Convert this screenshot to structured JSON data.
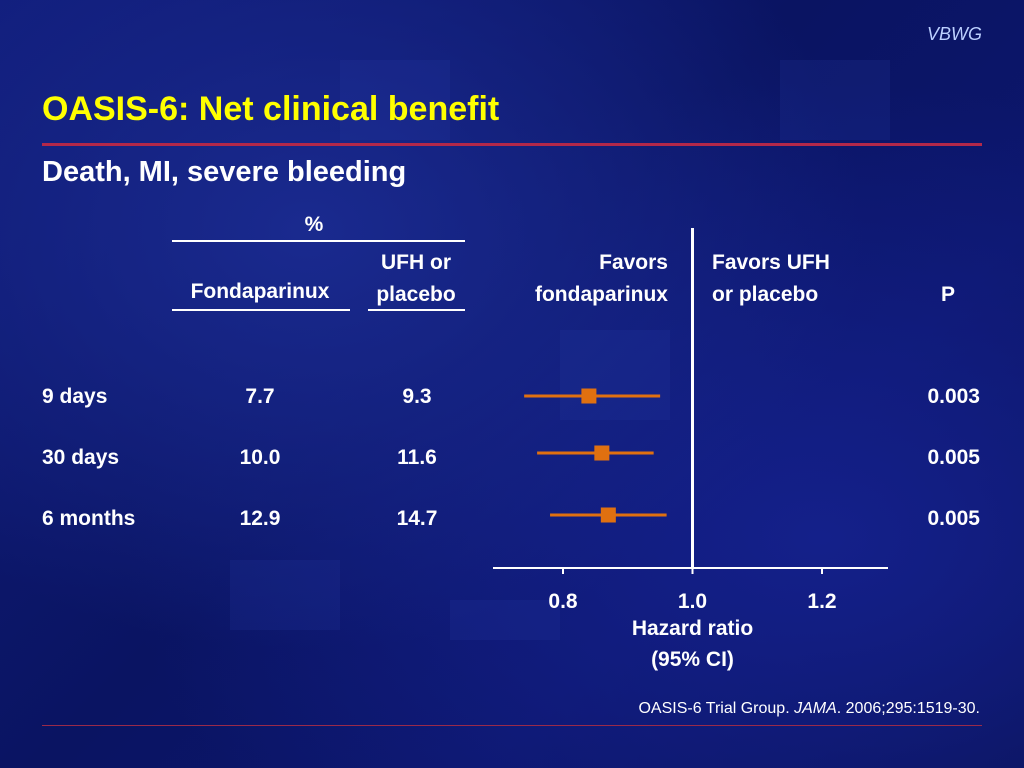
{
  "brand": "VBWG",
  "slide": {
    "title": "OASIS-6: Net clinical benefit",
    "subtitle": "Death, MI, severe bleeding"
  },
  "table": {
    "percent_header": "%",
    "col_fondaparinux": "Fondaparinux",
    "col_ufh_line1": "UFH or",
    "col_ufh_line2": "placebo",
    "favors_left_line1": "Favors",
    "favors_left_line2": "fondaparinux",
    "favors_right_line1": "Favors UFH",
    "favors_right_line2": "or placebo",
    "col_p": "P",
    "rows": [
      {
        "label": "9 days",
        "fondaparinux": "7.7",
        "ufh": "9.3",
        "p": "0.003"
      },
      {
        "label": "30 days",
        "fondaparinux": "10.0",
        "ufh": "11.6",
        "p": "0.005"
      },
      {
        "label": "6 months",
        "fondaparinux": "12.9",
        "ufh": "14.7",
        "p": "0.005"
      }
    ]
  },
  "chart_data": {
    "type": "scatter",
    "title": "",
    "xlabel_line1": "Hazard ratio",
    "xlabel_line2": "(95% CI)",
    "xlim": [
      0.72,
      1.25
    ],
    "reference_line": 1.0,
    "ticks": [
      0.8,
      1.0,
      1.2
    ],
    "tick_labels": [
      "0.8",
      "1.0",
      "1.2"
    ],
    "point_color": "#e07010",
    "points": [
      {
        "category": "9 days",
        "hr": 0.84,
        "ci_low": 0.74,
        "ci_high": 0.95
      },
      {
        "category": "30 days",
        "hr": 0.86,
        "ci_low": 0.76,
        "ci_high": 0.94
      },
      {
        "category": "6 months",
        "hr": 0.87,
        "ci_low": 0.78,
        "ci_high": 0.96
      }
    ]
  },
  "citation": {
    "prefix": "OASIS-6 Trial Group. ",
    "journal": "JAMA",
    "suffix": ". 2006;295:1519-30."
  }
}
